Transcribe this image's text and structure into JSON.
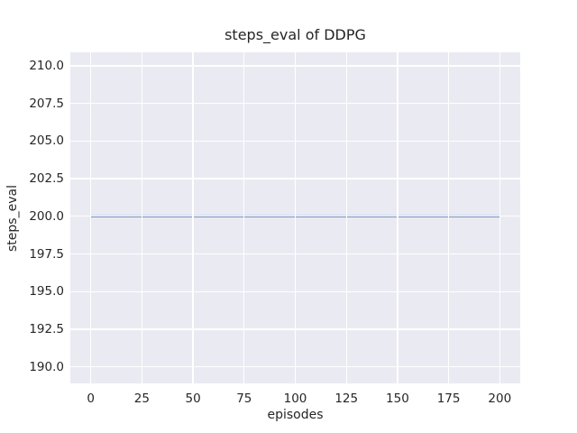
{
  "figure": {
    "background_color": "#ffffff",
    "text_color": "#262626"
  },
  "chart_data": {
    "type": "line",
    "title": "steps_eval of DDPG",
    "xlabel": "episodes",
    "ylabel": "steps_eval",
    "grid": true,
    "legend": false,
    "plot_background": "#eaeaf2",
    "grid_color": "#ffffff",
    "xlim": [
      -10,
      210
    ],
    "ylim": [
      188.9,
      210.9
    ],
    "x_ticks": [
      {
        "value": 0,
        "label": "0"
      },
      {
        "value": 25,
        "label": "25"
      },
      {
        "value": 50,
        "label": "50"
      },
      {
        "value": 75,
        "label": "75"
      },
      {
        "value": 100,
        "label": "100"
      },
      {
        "value": 125,
        "label": "125"
      },
      {
        "value": 150,
        "label": "150"
      },
      {
        "value": 175,
        "label": "175"
      },
      {
        "value": 200,
        "label": "200"
      }
    ],
    "y_ticks": [
      {
        "value": 210.0,
        "label": "210.0"
      },
      {
        "value": 207.5,
        "label": "207.5"
      },
      {
        "value": 205.0,
        "label": "205.0"
      },
      {
        "value": 202.5,
        "label": "202.5"
      },
      {
        "value": 200.0,
        "label": "200.0"
      },
      {
        "value": 197.5,
        "label": "197.5"
      },
      {
        "value": 195.0,
        "label": "195.0"
      },
      {
        "value": 192.5,
        "label": "192.5"
      },
      {
        "value": 190.0,
        "label": "190.0"
      }
    ],
    "series": [
      {
        "name": "steps_eval",
        "color": "#4c72b0",
        "line_width": 1.8,
        "x": [
          0,
          200
        ],
        "y": [
          200,
          200
        ],
        "note": "constant evaluation steps value of 200 across all episodes"
      }
    ]
  }
}
